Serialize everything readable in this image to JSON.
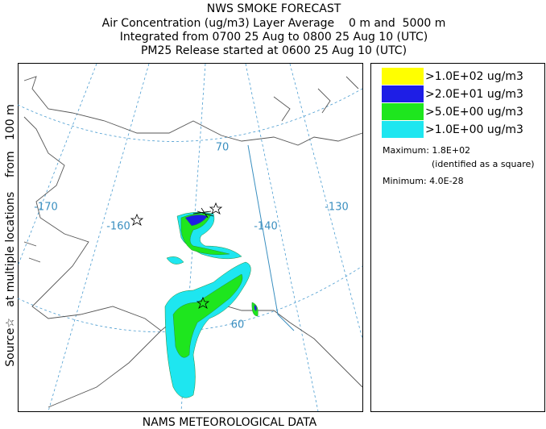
{
  "header": {
    "title": "NWS SMOKE FORECAST",
    "lines": [
      "Air Concentration (ug/m3) Layer Average    0 m and  5000 m",
      "Integrated from 0700 25 Aug to 0800 25 Aug 10 (UTC)",
      "PM25 Release started at 0600 25 Aug 10 (UTC)"
    ]
  },
  "side_label": "Source☆   at multiple locations    from   100 m",
  "footer": "NAMS METEOROLOGICAL DATA",
  "map": {
    "longitude_labels": [
      "-170",
      "-160",
      "-140",
      "-130"
    ],
    "latitude_labels": [
      "70",
      "60"
    ]
  },
  "legend": {
    "entries": [
      {
        "label": ">1.0E+02 ug/m3",
        "color": "#ffff00"
      },
      {
        "label": ">2.0E+01 ug/m3",
        "color": "#1e1ee6"
      },
      {
        "label": ">5.0E+00 ug/m3",
        "color": "#1ee61e"
      },
      {
        "label": ">1.0E+00 ug/m3",
        "color": "#1ee6f0"
      }
    ],
    "maximum": "Maximum: 1.8E+02",
    "maximum_note": "(identified as a square)",
    "minimum": "Minimum: 4.0E-28"
  }
}
